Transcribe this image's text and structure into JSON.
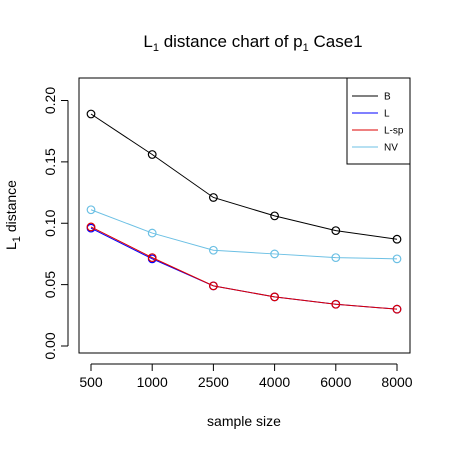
{
  "chart_data": {
    "type": "line",
    "title": {
      "prefix": "L",
      "sub": "1",
      "middle": " distance chart of p",
      "sub2": "1",
      "suffix": " Case1"
    },
    "xlabel": "sample size",
    "ylabel": {
      "prefix": "L",
      "sub": "1",
      "suffix": " distance"
    },
    "categories": [
      "500",
      "1000",
      "2500",
      "4000",
      "6000",
      "8000"
    ],
    "ylim": [
      0,
      0.2
    ],
    "yticks": [
      "0.00",
      "0.05",
      "0.10",
      "0.15",
      "0.20"
    ],
    "yticks_values": [
      0,
      0.05,
      0.1,
      0.15,
      0.2
    ],
    "grid": false,
    "legend_position": "top-right",
    "series": [
      {
        "name": "B",
        "color": "#000000",
        "values": [
          0.189,
          0.156,
          0.121,
          0.106,
          0.094,
          0.087
        ],
        "markers": true
      },
      {
        "name": "L",
        "color": "#0000ff",
        "values": [
          0.096,
          0.071,
          0.049,
          0.04,
          0.034,
          0.03
        ],
        "markers": true
      },
      {
        "name": "L-sp",
        "color": "#dd0000",
        "values": [
          0.097,
          0.072,
          0.049,
          0.04,
          0.034,
          0.03
        ],
        "markers": true
      },
      {
        "name": "NV",
        "color": "#6cc0e4",
        "values": [
          0.111,
          0.092,
          0.078,
          0.075,
          0.072,
          0.071
        ],
        "markers": true
      }
    ]
  }
}
